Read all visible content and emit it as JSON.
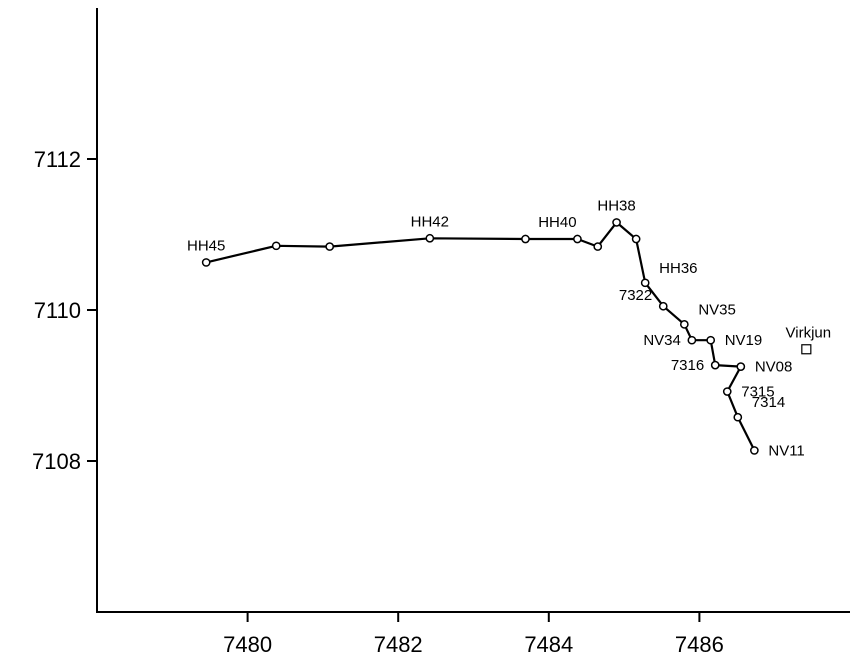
{
  "chart_data": {
    "type": "line",
    "title": "",
    "xlabel": "",
    "ylabel": "",
    "xlim": [
      7478,
      7488.0
    ],
    "ylim": [
      7106.0,
      7114.0
    ],
    "xticks": [
      {
        "value": 7480,
        "label": "7480"
      },
      {
        "value": 7482,
        "label": "7482"
      },
      {
        "value": 7484,
        "label": "7484"
      },
      {
        "value": 7486,
        "label": "7486"
      }
    ],
    "yticks": [
      {
        "value": 7108,
        "label": "7108"
      },
      {
        "value": 7110,
        "label": "7110"
      },
      {
        "value": 7112,
        "label": "7112"
      }
    ],
    "series": [
      {
        "marker": "circle",
        "color": "#000000",
        "points": [
          {
            "x": 7479.45,
            "y": 7110.63
          },
          {
            "x": 7480.38,
            "y": 7110.85
          },
          {
            "x": 7481.09,
            "y": 7110.84
          },
          {
            "x": 7482.42,
            "y": 7110.95
          },
          {
            "x": 7483.69,
            "y": 7110.94
          },
          {
            "x": 7484.38,
            "y": 7110.94
          },
          {
            "x": 7484.65,
            "y": 7110.84
          },
          {
            "x": 7484.9,
            "y": 7111.16
          },
          {
            "x": 7485.16,
            "y": 7110.94
          },
          {
            "x": 7485.28,
            "y": 7110.36
          },
          {
            "x": 7485.52,
            "y": 7110.05
          },
          {
            "x": 7485.8,
            "y": 7109.81
          },
          {
            "x": 7485.9,
            "y": 7109.6
          },
          {
            "x": 7486.15,
            "y": 7109.6
          },
          {
            "x": 7486.21,
            "y": 7109.27
          },
          {
            "x": 7486.55,
            "y": 7109.25
          },
          {
            "x": 7486.37,
            "y": 7108.92
          },
          {
            "x": 7486.51,
            "y": 7108.58
          },
          {
            "x": 7486.73,
            "y": 7108.14
          }
        ]
      }
    ],
    "labels": [
      {
        "text": "HH45",
        "x": 7479.45,
        "y": 7110.63,
        "anchor": "above"
      },
      {
        "text": "HH42",
        "x": 7482.42,
        "y": 7110.95,
        "anchor": "above"
      },
      {
        "text": "HH40",
        "x": 7484.38,
        "y": 7110.94,
        "anchor": "above-left"
      },
      {
        "text": "HH38",
        "x": 7484.9,
        "y": 7111.16,
        "anchor": "above"
      },
      {
        "text": "HH36",
        "x": 7485.28,
        "y": 7110.36,
        "anchor": "right-above"
      },
      {
        "text": "7322",
        "x": 7485.52,
        "y": 7110.05,
        "anchor": "left-above"
      },
      {
        "text": "NV35",
        "x": 7485.8,
        "y": 7109.81,
        "anchor": "right-above"
      },
      {
        "text": "NV34",
        "x": 7485.9,
        "y": 7109.6,
        "anchor": "left"
      },
      {
        "text": "NV19",
        "x": 7486.15,
        "y": 7109.6,
        "anchor": "right"
      },
      {
        "text": "7316",
        "x": 7486.21,
        "y": 7109.27,
        "anchor": "left"
      },
      {
        "text": "NV08",
        "x": 7486.55,
        "y": 7109.25,
        "anchor": "right"
      },
      {
        "text": "7315",
        "x": 7486.37,
        "y": 7108.92,
        "anchor": "right"
      },
      {
        "text": "7314",
        "x": 7486.51,
        "y": 7108.58,
        "anchor": "right-above"
      },
      {
        "text": "NV11",
        "x": 7486.73,
        "y": 7108.14,
        "anchor": "right"
      }
    ],
    "extra_markers": [
      {
        "text": "Virkjun",
        "x": 7487.42,
        "y": 7109.48,
        "marker": "square"
      }
    ]
  }
}
